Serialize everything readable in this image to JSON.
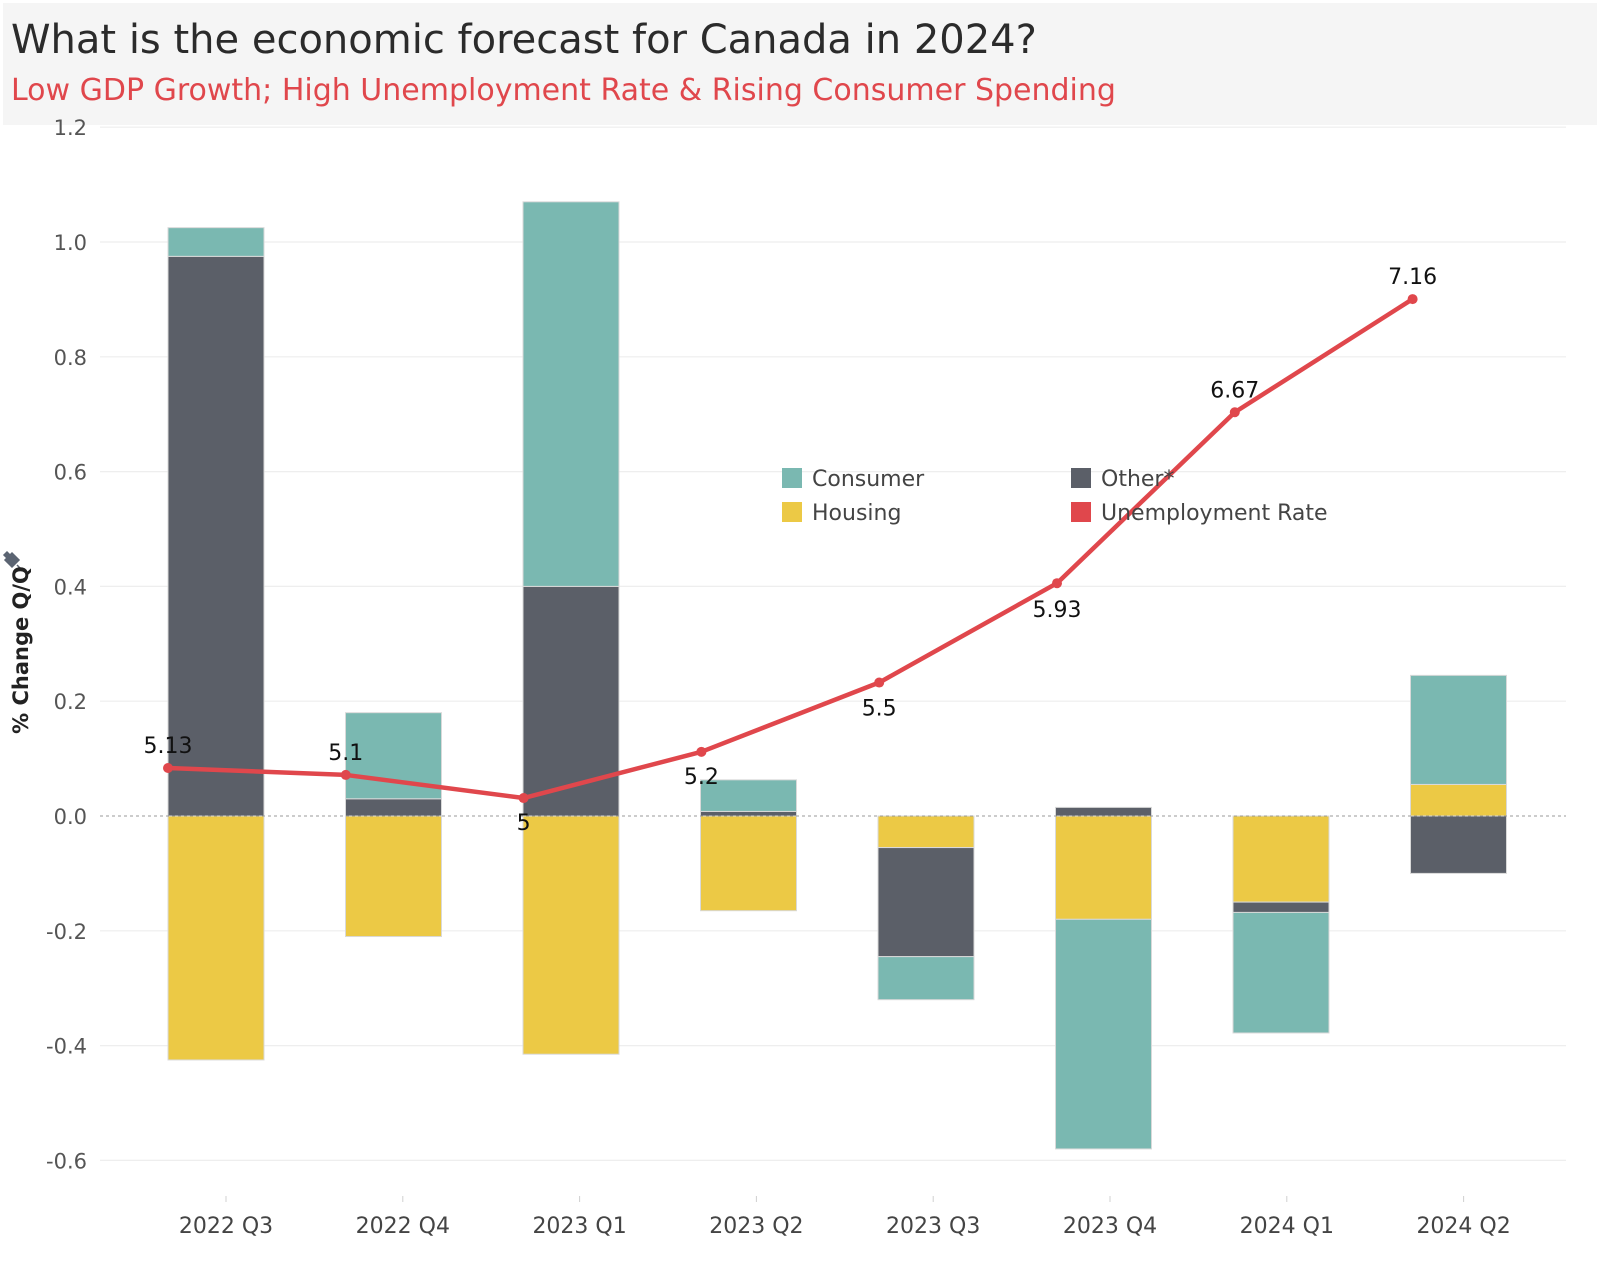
{
  "header": {
    "title": "What is the economic forecast for Canada in 2024?",
    "subtitle": "Low GDP Growth; High Unemployment Rate & Rising Consumer Spending"
  },
  "colors": {
    "consumer": "#7ab8b1",
    "other": "#5b5f68",
    "housing": "#ecc945",
    "unemployment": "#e0474c"
  },
  "chart_data": {
    "type": "bar",
    "stacked": true,
    "title": "",
    "xlabel": "",
    "ylabel": "% Change Q/Q",
    "ylim": [
      -0.65,
      1.25
    ],
    "yticks": [
      1.2,
      1.0,
      0.8,
      0.6,
      0.4,
      0.2,
      0.0,
      -0.2,
      -0.4,
      -0.6
    ],
    "ytick_labels": [
      "1.2",
      "1.0",
      "0.8",
      "0.6",
      "0.4",
      "0.2",
      "0.0",
      "-0.2",
      "-0.4",
      "-0.6"
    ],
    "categories": [
      "2022 Q3",
      "2022 Q4",
      "2023 Q1",
      "2023 Q2",
      "2023 Q3",
      "2023 Q4",
      "2024 Q1",
      "2024 Q2"
    ],
    "series": [
      {
        "name": "Consumer",
        "values": [
          0.05,
          0.15,
          0.67,
          0.055,
          -0.075,
          -0.4,
          -0.21,
          0.19
        ]
      },
      {
        "name": "Other*",
        "values": [
          0.975,
          0.03,
          0.4,
          0.008,
          -0.19,
          0.015,
          -0.018,
          -0.1
        ]
      },
      {
        "name": "Housing",
        "values": [
          -0.425,
          -0.21,
          -0.415,
          -0.165,
          -0.055,
          -0.18,
          -0.15,
          0.055
        ]
      }
    ],
    "line_series": {
      "name": "Unemployment Rate",
      "values": [
        5.13,
        5.1,
        5.0,
        5.2,
        5.5,
        5.93,
        6.67,
        7.16
      ],
      "labels": [
        "5.13",
        "5.1",
        "5",
        "5.2",
        "5.5",
        "5.93",
        "6.67",
        "7.16"
      ],
      "axis_hidden": true
    },
    "legend": {
      "placement": "center",
      "entries": [
        "Consumer",
        "Other*",
        "Housing",
        "Unemployment Rate"
      ]
    }
  }
}
